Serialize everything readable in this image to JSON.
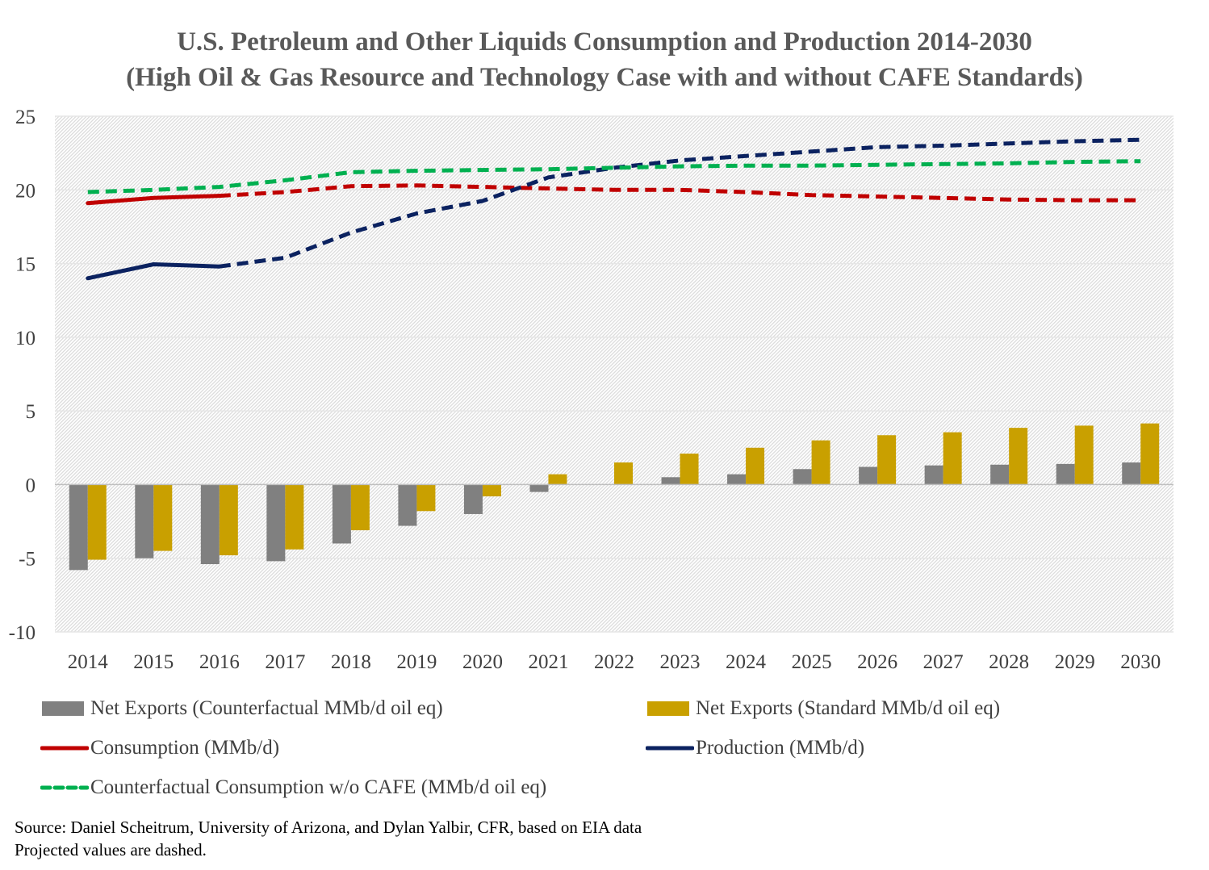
{
  "chart_data": {
    "type": "bar",
    "title_line1": "U.S. Petroleum and Other Liquids Consumption and Production 2014-2030",
    "title_line2": "(High Oil & Gas Resource and Technology Case with and without CAFE Standards)",
    "categories": [
      "2014",
      "2015",
      "2016",
      "2017",
      "2018",
      "2019",
      "2020",
      "2021",
      "2022",
      "2023",
      "2024",
      "2025",
      "2026",
      "2027",
      "2028",
      "2029",
      "2030"
    ],
    "ylim": [
      -10,
      25
    ],
    "yticks": [
      -10,
      -5,
      0,
      5,
      10,
      15,
      20,
      25
    ],
    "grid": true,
    "projection_start_index": 2,
    "bar_series": [
      {
        "name": "Net Exports (Counterfactual MMb/d oil eq)",
        "color": "#808080",
        "values": [
          -5.8,
          -5.0,
          -5.4,
          -5.2,
          -4.0,
          -2.8,
          -2.0,
          -0.5,
          0.0,
          0.5,
          0.7,
          1.05,
          1.2,
          1.3,
          1.35,
          1.4,
          1.5
        ]
      },
      {
        "name": "Net Exports (Standard MMb/d oil eq)",
        "color": "#C9A000",
        "values": [
          -5.1,
          -4.5,
          -4.8,
          -4.4,
          -3.1,
          -1.8,
          -0.8,
          0.7,
          1.5,
          2.1,
          2.5,
          3.0,
          3.35,
          3.55,
          3.85,
          4.0,
          4.15
        ]
      }
    ],
    "line_series": [
      {
        "name": "Consumption (MMb/d)",
        "color": "#C00000",
        "values": [
          19.1,
          19.45,
          19.6,
          19.85,
          20.25,
          20.3,
          20.2,
          20.1,
          20.0,
          20.0,
          19.85,
          19.65,
          19.55,
          19.45,
          19.35,
          19.3,
          19.3
        ]
      },
      {
        "name": "Production (MMb/d)",
        "color": "#0B2260",
        "values": [
          14.0,
          14.95,
          14.8,
          15.4,
          17.1,
          18.4,
          19.25,
          20.85,
          21.5,
          22.0,
          22.3,
          22.6,
          22.9,
          23.0,
          23.15,
          23.3,
          23.4
        ]
      },
      {
        "name": "Counterfactual Consumption w/o CAFE (MMb/d oil eq)",
        "color": "#00B050",
        "all_dashed": true,
        "values": [
          19.85,
          20.0,
          20.2,
          20.65,
          21.2,
          21.3,
          21.35,
          21.4,
          21.5,
          21.6,
          21.65,
          21.65,
          21.7,
          21.75,
          21.8,
          21.9,
          21.95
        ]
      }
    ]
  },
  "legend": {
    "bar_counterfactual": "Net Exports (Counterfactual MMb/d oil eq)",
    "bar_standard": "Net Exports (Standard MMb/d oil eq)",
    "line_consumption": "Consumption (MMb/d)",
    "line_production": "Production (MMb/d)",
    "line_counterfactual": "Counterfactual Consumption w/o CAFE (MMb/d oil eq)"
  },
  "source": {
    "line1": "Source: Daniel Scheitrum, University of Arizona, and Dylan Yalbir, CFR, based on EIA data",
    "line2": "Projected values are dashed."
  }
}
